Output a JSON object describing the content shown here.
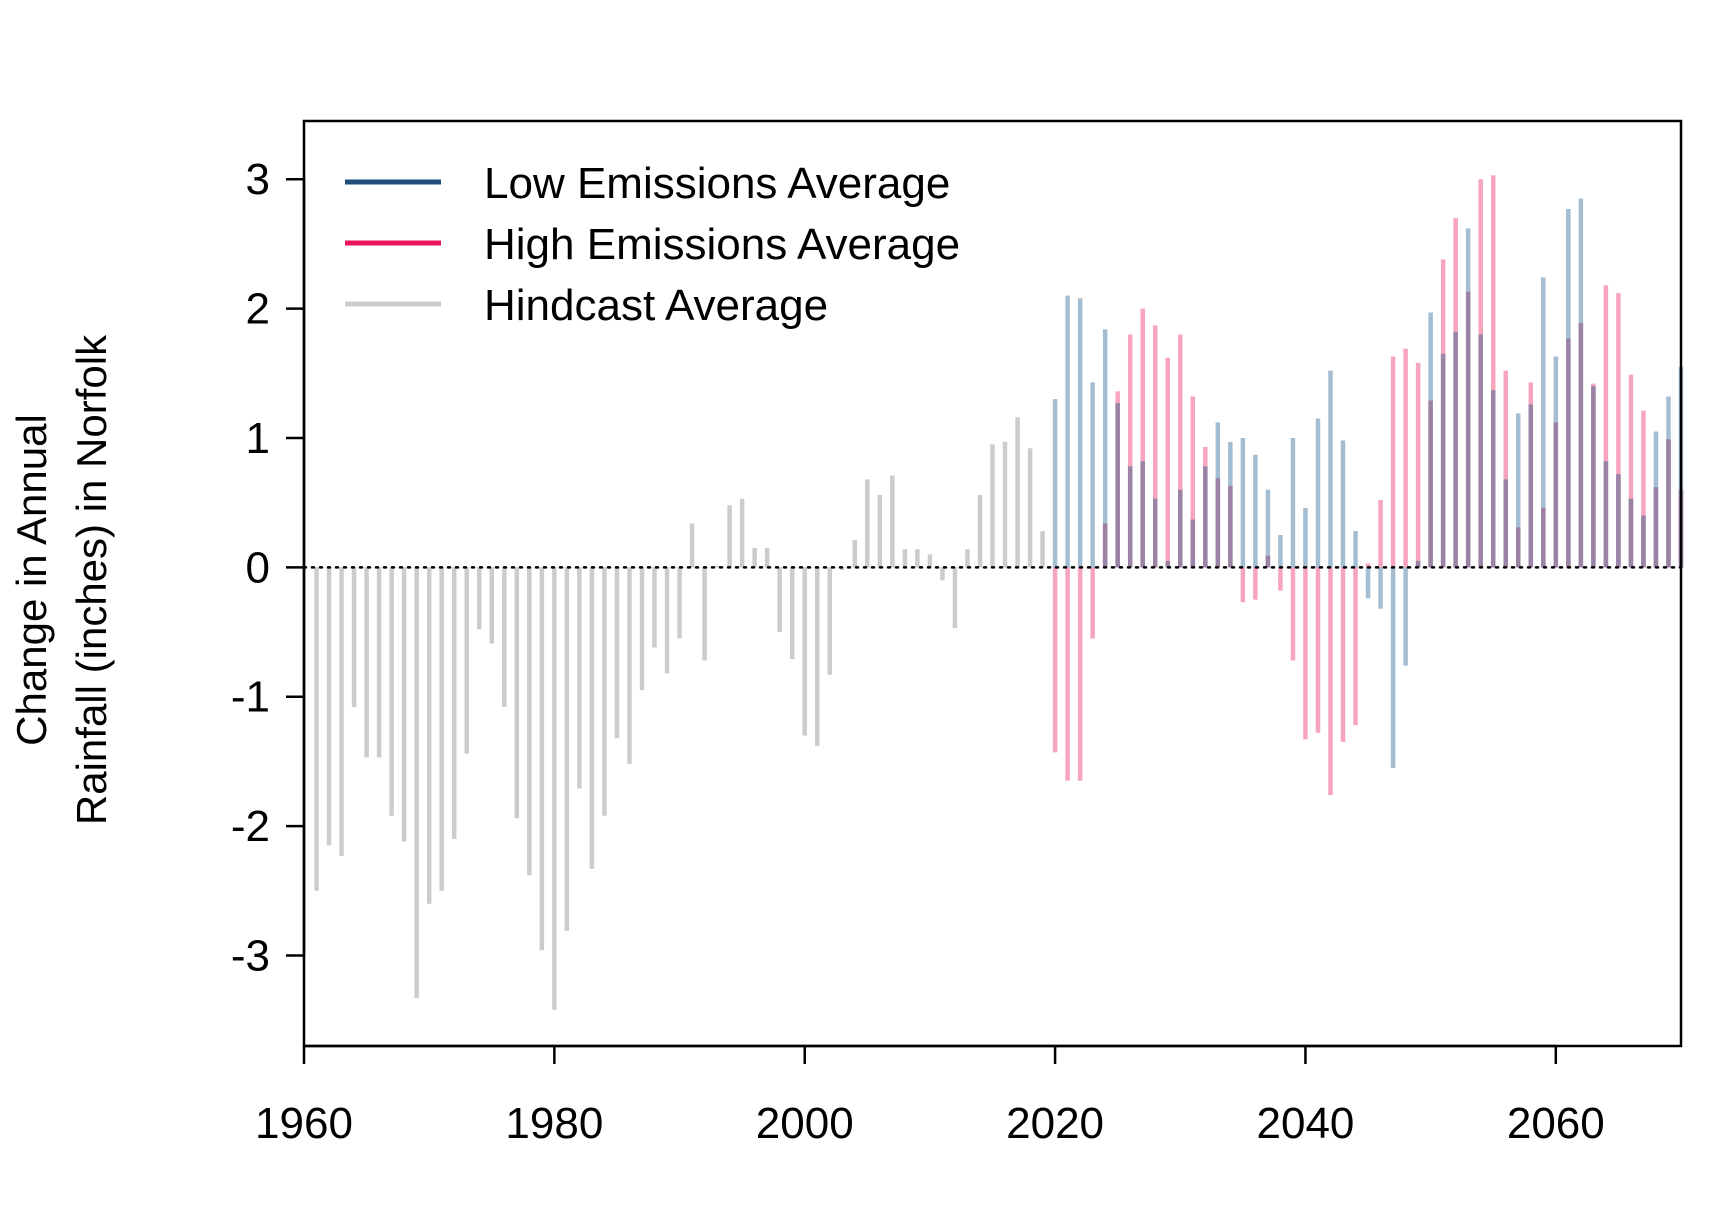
{
  "chart_data": {
    "type": "bar",
    "title": "",
    "xlabel": "",
    "ylabel_line1": "Change in Annual",
    "ylabel_line2": "Rainfall (inches) in Norfolk",
    "xlim": [
      1960,
      2070
    ],
    "ylim": [
      -3.7,
      3.45
    ],
    "x_ticks": [
      1960,
      1980,
      2000,
      2020,
      2040,
      2060
    ],
    "y_ticks": [
      -3,
      -2,
      -1,
      0,
      1,
      2,
      3
    ],
    "zero_line": "dotted",
    "grid": false,
    "legend_position": "top-left",
    "colors": {
      "low": "#1f4e79",
      "high": "#e8175d",
      "hindcast": "#cccccc",
      "low_bar": "#a3bdd3",
      "high_bar": "#f7a4bd",
      "overlap_bar": "#9c83a6"
    },
    "series": [
      {
        "name": "Low Emissions Average",
        "key": "low",
        "x": [
          2020,
          2021,
          2022,
          2023,
          2024,
          2025,
          2026,
          2027,
          2028,
          2029,
          2030,
          2031,
          2032,
          2033,
          2034,
          2035,
          2036,
          2037,
          2038,
          2039,
          2040,
          2041,
          2042,
          2043,
          2044,
          2045,
          2046,
          2047,
          2048,
          2049,
          2050,
          2051,
          2052,
          2053,
          2054,
          2055,
          2056,
          2057,
          2058,
          2059,
          2060,
          2061,
          2062,
          2063,
          2064,
          2065,
          2066,
          2067,
          2068,
          2069,
          2070
        ],
        "values": [
          1.3,
          2.1,
          2.08,
          1.43,
          1.84,
          1.27,
          0.78,
          0.82,
          0.53,
          0.05,
          0.6,
          0.37,
          0.78,
          1.12,
          0.97,
          1.0,
          0.87,
          0.6,
          0.25,
          1.0,
          0.46,
          1.15,
          1.52,
          0.98,
          0.28,
          -0.24,
          -0.32,
          -1.55,
          -0.76,
          0.05,
          1.97,
          1.65,
          1.82,
          2.62,
          1.8,
          1.37,
          0.68,
          1.19,
          1.26,
          2.24,
          1.63,
          2.77,
          2.85,
          1.4,
          0.82,
          0.72,
          0.53,
          0.4,
          1.05,
          1.32,
          1.55
        ]
      },
      {
        "name": "High Emissions Average",
        "key": "high",
        "x": [
          2020,
          2021,
          2022,
          2023,
          2024,
          2025,
          2026,
          2027,
          2028,
          2029,
          2030,
          2031,
          2032,
          2033,
          2034,
          2035,
          2036,
          2037,
          2038,
          2039,
          2040,
          2041,
          2042,
          2043,
          2044,
          2045,
          2046,
          2047,
          2048,
          2049,
          2050,
          2051,
          2052,
          2053,
          2054,
          2055,
          2056,
          2057,
          2058,
          2059,
          2060,
          2061,
          2062,
          2063,
          2064,
          2065,
          2066,
          2067,
          2068,
          2069,
          2070
        ],
        "values": [
          -1.43,
          -1.65,
          -1.65,
          -0.55,
          0.34,
          1.36,
          1.8,
          2.0,
          1.87,
          1.62,
          1.8,
          1.32,
          0.93,
          0.69,
          0.63,
          -0.27,
          -0.25,
          0.09,
          -0.18,
          -0.72,
          -1.33,
          -1.28,
          -1.76,
          -1.35,
          -1.22,
          0.03,
          0.52,
          1.63,
          1.69,
          1.58,
          1.29,
          2.38,
          2.7,
          2.13,
          3.0,
          3.03,
          1.52,
          0.31,
          1.43,
          0.46,
          1.12,
          1.77,
          1.89,
          1.42,
          2.18,
          2.12,
          1.49,
          1.21,
          0.62,
          0.99,
          0.6
        ]
      },
      {
        "name": "Hindcast Average",
        "key": "hindcast",
        "x": [
          1961,
          1962,
          1963,
          1964,
          1965,
          1966,
          1967,
          1968,
          1969,
          1970,
          1971,
          1972,
          1973,
          1974,
          1975,
          1976,
          1977,
          1978,
          1979,
          1980,
          1981,
          1982,
          1983,
          1984,
          1985,
          1986,
          1987,
          1988,
          1989,
          1990,
          1991,
          1992,
          1993,
          1994,
          1995,
          1996,
          1997,
          1998,
          1999,
          2000,
          2001,
          2002,
          2003,
          2004,
          2005,
          2006,
          2007,
          2008,
          2009,
          2010,
          2011,
          2012,
          2013,
          2014,
          2015,
          2016,
          2017,
          2018,
          2019
        ],
        "values": [
          -2.5,
          -2.15,
          -2.23,
          -1.08,
          -1.47,
          -1.47,
          -1.92,
          -2.12,
          -3.33,
          -2.6,
          -2.5,
          -2.1,
          -1.44,
          -0.48,
          -0.59,
          -1.08,
          -1.94,
          -2.38,
          -2.96,
          -3.42,
          -2.81,
          -1.71,
          -2.33,
          -1.92,
          -1.32,
          -1.52,
          -0.95,
          -0.62,
          -0.82,
          -0.55,
          0.34,
          -0.72,
          0.01,
          0.48,
          0.53,
          0.15,
          0.15,
          -0.5,
          -0.71,
          -1.3,
          -1.38,
          -0.83,
          -0.02,
          0.21,
          0.68,
          0.56,
          0.71,
          0.14,
          0.14,
          0.1,
          -0.1,
          -0.47,
          0.14,
          0.56,
          0.95,
          0.97,
          1.16,
          0.92,
          0.28
        ]
      }
    ]
  }
}
